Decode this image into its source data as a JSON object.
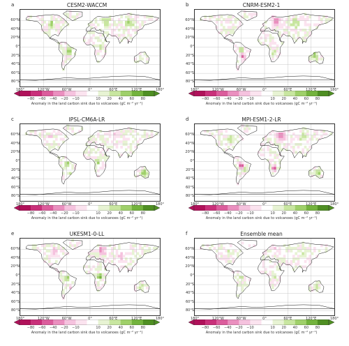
{
  "panels": [
    {
      "letter": "a",
      "title": "CESM2-WACCM"
    },
    {
      "letter": "b",
      "title": "CNRM-ESM2-1"
    },
    {
      "letter": "c",
      "title": "IPSL-CM6A-LR"
    },
    {
      "letter": "d",
      "title": "MPI-ESM1-2-LR"
    },
    {
      "letter": "e",
      "title": "UKESM1-0-LL"
    },
    {
      "letter": "f",
      "title": "Ensemble mean"
    }
  ],
  "lat_labels": [
    "60°N",
    "40°N",
    "20°N",
    "0°",
    "20°S",
    "40°S",
    "60°S",
    "80°S"
  ],
  "lon_labels": [
    "180°",
    "120°W",
    "60°W",
    "0°",
    "60°E",
    "120°E",
    "180°"
  ],
  "colorbar": {
    "ticks": [
      "−80",
      "−60",
      "−40",
      "−20",
      "−10",
      "10",
      "20",
      "40",
      "60",
      "80"
    ],
    "label": "Anomaly in the land carbon sink due to volcanoes (gC m⁻² yr⁻¹)",
    "colors": [
      "#b0115a",
      "#c9307a",
      "#db5d9c",
      "#ea8fbf",
      "#f5c2de",
      "#fbe3ef",
      "#ffffff",
      "#e7f3d3",
      "#c8e6a0",
      "#9fd06a",
      "#73b33d",
      "#4f8f23"
    ]
  }
}
